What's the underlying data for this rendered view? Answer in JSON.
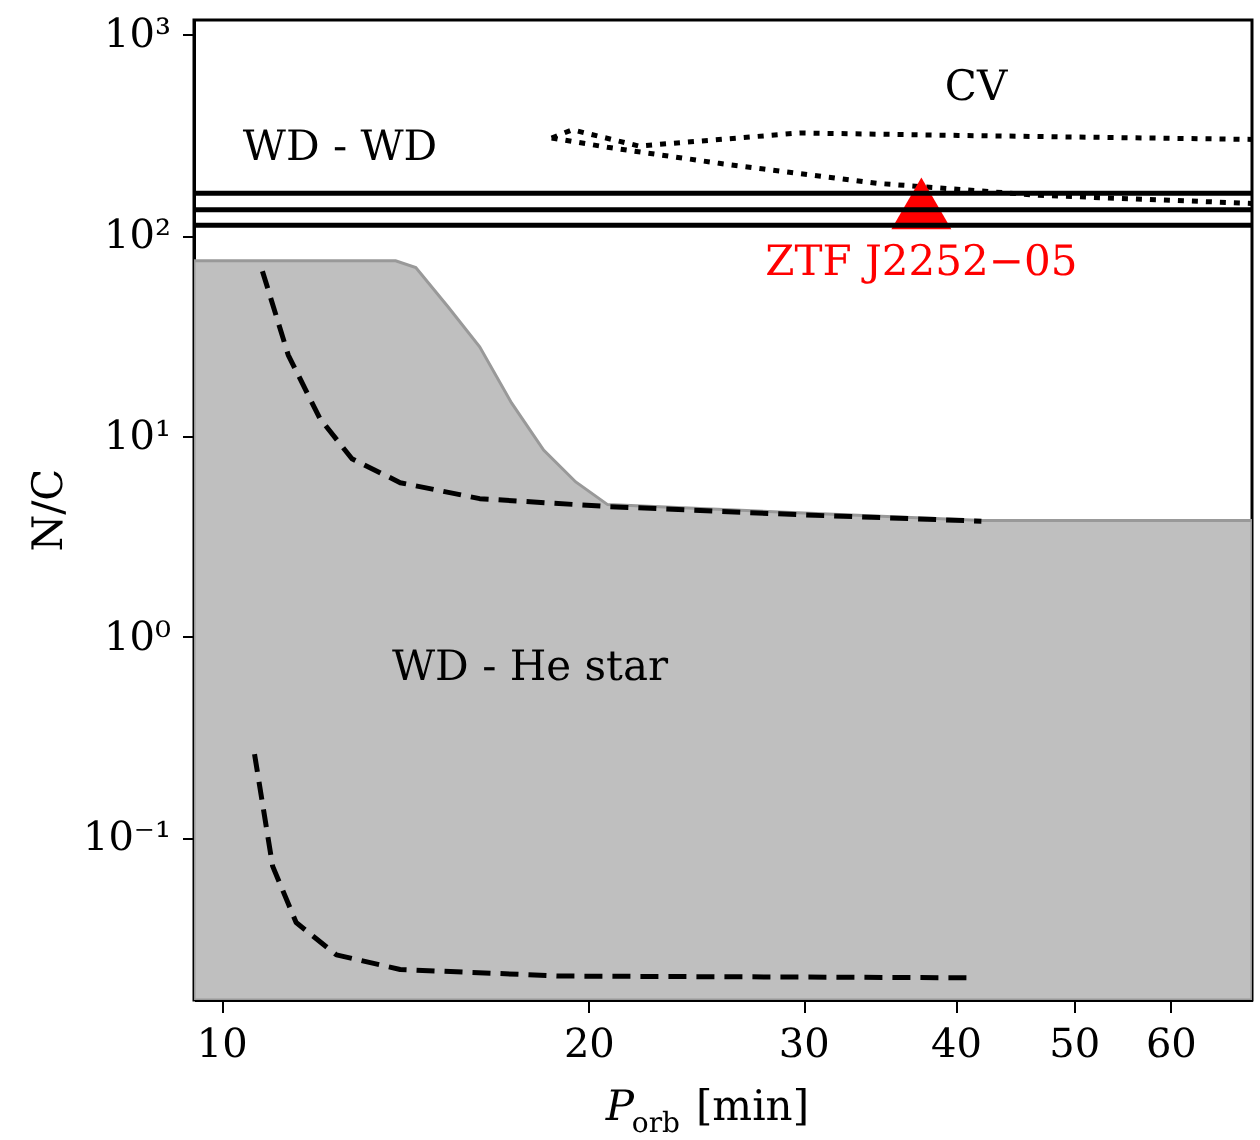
{
  "chart_data": {
    "type": "line",
    "xlabel": "P$_{orb}$ [min]",
    "ylabel": "N/C",
    "xlim": [
      9.5,
      70
    ],
    "ylim": [
      0.0155,
      1180
    ],
    "log": "xy",
    "grid": false,
    "xticks": [
      10,
      20,
      30,
      40,
      50,
      60
    ],
    "yticks": [
      {
        "value": 0.1,
        "label": "10⁻¹"
      },
      {
        "value": 1,
        "label": "10⁰"
      },
      {
        "value": 10,
        "label": "10¹"
      },
      {
        "value": 100,
        "label": "10²"
      },
      {
        "value": 1000,
        "label": "10³"
      }
    ],
    "series": [
      {
        "type": "area",
        "color": "#bfbfbf",
        "x": [
          9.5,
          13.9,
          14.44,
          15.35,
          16.29,
          17.3,
          18.38,
          19.53,
          20.74,
          42.1,
          70
        ],
        "values": [
          74.6,
          74.6,
          69,
          43.9,
          27.8,
          14.6,
          8.5,
          5.9,
          4.55,
          3.79,
          3.79
        ]
      },
      {
        "line_style": "dashed",
        "color": "#000000",
        "x": [
          10.81,
          11.35,
          12.05,
          12.8,
          14.02,
          16.29,
          20.74,
          29.8,
          42.0
        ],
        "values": [
          66.2,
          25.3,
          12.2,
          7.7,
          5.85,
          4.87,
          4.45,
          4.05,
          3.76
        ]
      },
      {
        "line_style": "dashed",
        "color": "#000000",
        "x": [
          10.65,
          11.02,
          11.52,
          12.43,
          14.02,
          18.94,
          41.0
        ],
        "values": [
          0.26,
          0.072,
          0.0377,
          0.026,
          0.022,
          0.0204,
          0.02
        ]
      },
      {
        "type": "line",
        "line_style": "dotted",
        "color": "#000000",
        "x": [
          18.66,
          19.4,
          22.0,
          29.8,
          40.2,
          70
        ],
        "values": [
          305,
          335,
          278,
          323,
          314,
          300
        ]
      },
      {
        "type": "line",
        "line_style": "dotted",
        "color": "#000000",
        "x": [
          18.66,
          20.74,
          25.6,
          34.6,
          46.8,
          70
        ],
        "values": [
          305,
          274,
          228,
          181,
          158,
          144
        ]
      },
      {
        "type": "scatter",
        "marker": "triangle",
        "name": "ZTF J2252−05",
        "color": "#ff0000",
        "x": [
          37.5
        ],
        "values": [
          144
        ]
      }
    ],
    "ref_lines": [
      {
        "axis": "y",
        "value": 162,
        "color": "#000000",
        "line_style": "solid"
      },
      {
        "axis": "y",
        "value": 134,
        "color": "#000000",
        "line_style": "solid"
      },
      {
        "axis": "y",
        "value": 112,
        "color": "#000000",
        "line_style": "solid"
      }
    ],
    "annotations": [
      "CV",
      "WD - WD",
      "WD - He star"
    ]
  }
}
